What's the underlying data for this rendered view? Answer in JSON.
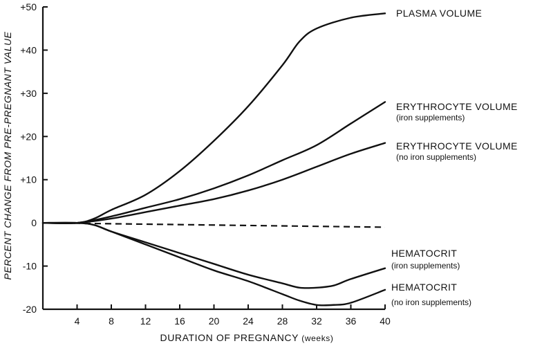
{
  "chart_data": {
    "type": "line",
    "title": "",
    "xlabel": "DURATION OF PREGNANCY",
    "xlabel_unit": "(weeks)",
    "ylabel": "PERCENT CHANGE FROM PRE-PREGNANT VALUE",
    "xlim": [
      0,
      40
    ],
    "ylim": [
      -20,
      50
    ],
    "x_ticks": [
      4,
      8,
      12,
      16,
      20,
      24,
      28,
      32,
      36,
      40
    ],
    "x_tick_labels": [
      "4",
      "8",
      "12",
      "16",
      "20",
      "24",
      "28",
      "32",
      "36",
      "40"
    ],
    "y_ticks": [
      -20,
      -10,
      0,
      10,
      20,
      30,
      40,
      50
    ],
    "y_tick_labels": [
      "-20",
      "-10",
      "0",
      "+10",
      "+20",
      "+30",
      "+40",
      "+50"
    ],
    "grid": false,
    "series": [
      {
        "name": "PLASMA VOLUME",
        "sublabel": "",
        "style": "solid",
        "x": [
          0,
          4,
          6,
          8,
          12,
          16,
          20,
          24,
          28,
          30,
          32,
          36,
          40
        ],
        "y": [
          0,
          0,
          1,
          3,
          6.5,
          12,
          19,
          27,
          36.5,
          42,
          45,
          47.5,
          48.5
        ]
      },
      {
        "name": "ERYTHROCYTE VOLUME",
        "sublabel": "(iron supplements)",
        "style": "solid",
        "x": [
          0,
          4,
          8,
          12,
          16,
          20,
          24,
          28,
          32,
          36,
          40
        ],
        "y": [
          0,
          0,
          1.5,
          3.5,
          5.5,
          8,
          11,
          14.5,
          18,
          23,
          28
        ]
      },
      {
        "name": "ERYTHROCYTE VOLUME",
        "sublabel": "(no iron supplements)",
        "style": "solid",
        "x": [
          0,
          4,
          8,
          12,
          16,
          20,
          24,
          28,
          32,
          36,
          40
        ],
        "y": [
          0,
          0,
          1,
          2.5,
          4,
          5.5,
          7.5,
          10,
          13,
          16,
          18.5
        ]
      },
      {
        "name": "",
        "sublabel": "",
        "style": "dashed",
        "x": [
          0,
          40
        ],
        "y": [
          0,
          -1
        ]
      },
      {
        "name": "HEMATOCRIT",
        "sublabel": "(iron supplements)",
        "style": "solid",
        "x": [
          0,
          4,
          6,
          8,
          12,
          16,
          20,
          24,
          28,
          30,
          32,
          34,
          36,
          40
        ],
        "y": [
          0,
          0,
          -0.5,
          -2,
          -4.5,
          -7,
          -9.5,
          -12,
          -14,
          -15,
          -15,
          -14.5,
          -13,
          -10.5
        ]
      },
      {
        "name": "HEMATOCRIT",
        "sublabel": "(no iron supplements)",
        "style": "solid",
        "x": [
          0,
          4,
          6,
          8,
          12,
          16,
          20,
          24,
          28,
          30,
          32,
          34,
          36,
          40
        ],
        "y": [
          0,
          0,
          -0.5,
          -2,
          -5,
          -8,
          -11,
          -13.5,
          -16.5,
          -18,
          -19,
          -19,
          -18.5,
          -15.5
        ]
      }
    ]
  }
}
